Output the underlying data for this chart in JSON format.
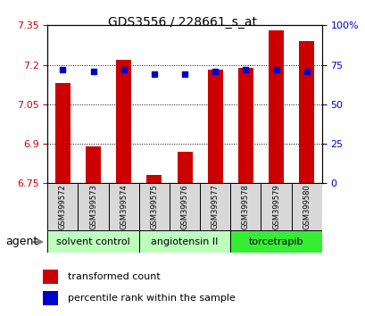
{
  "title": "GDS3556 / 228661_s_at",
  "samples": [
    "GSM399572",
    "GSM399573",
    "GSM399574",
    "GSM399575",
    "GSM399576",
    "GSM399577",
    "GSM399578",
    "GSM399579",
    "GSM399580"
  ],
  "bar_values": [
    7.13,
    6.89,
    7.22,
    6.78,
    6.87,
    7.18,
    7.19,
    7.33,
    7.29
  ],
  "percentile_values": [
    72,
    71,
    72,
    69,
    69,
    71,
    72,
    72,
    71
  ],
  "y_min": 6.75,
  "y_max": 7.35,
  "y_ticks_left": [
    6.75,
    6.9,
    7.05,
    7.2,
    7.35
  ],
  "y_ticks_right": [
    0,
    25,
    50,
    75,
    100
  ],
  "bar_color": "#cc0000",
  "dot_color": "#0000cc",
  "group_spans": [
    {
      "start": 0,
      "end": 2,
      "label": "solvent control",
      "color": "#bbffbb"
    },
    {
      "start": 3,
      "end": 5,
      "label": "angiotensin II",
      "color": "#bbffbb"
    },
    {
      "start": 6,
      "end": 8,
      "label": "torcetrapib",
      "color": "#33ee33"
    }
  ],
  "agent_label": "agent",
  "legend_bar_label": "transformed count",
  "legend_dot_label": "percentile rank within the sample",
  "left_tick_color": "#cc0000",
  "right_tick_color": "#0000cc",
  "title_color": "#000000",
  "cell_color": "#d8d8d8"
}
